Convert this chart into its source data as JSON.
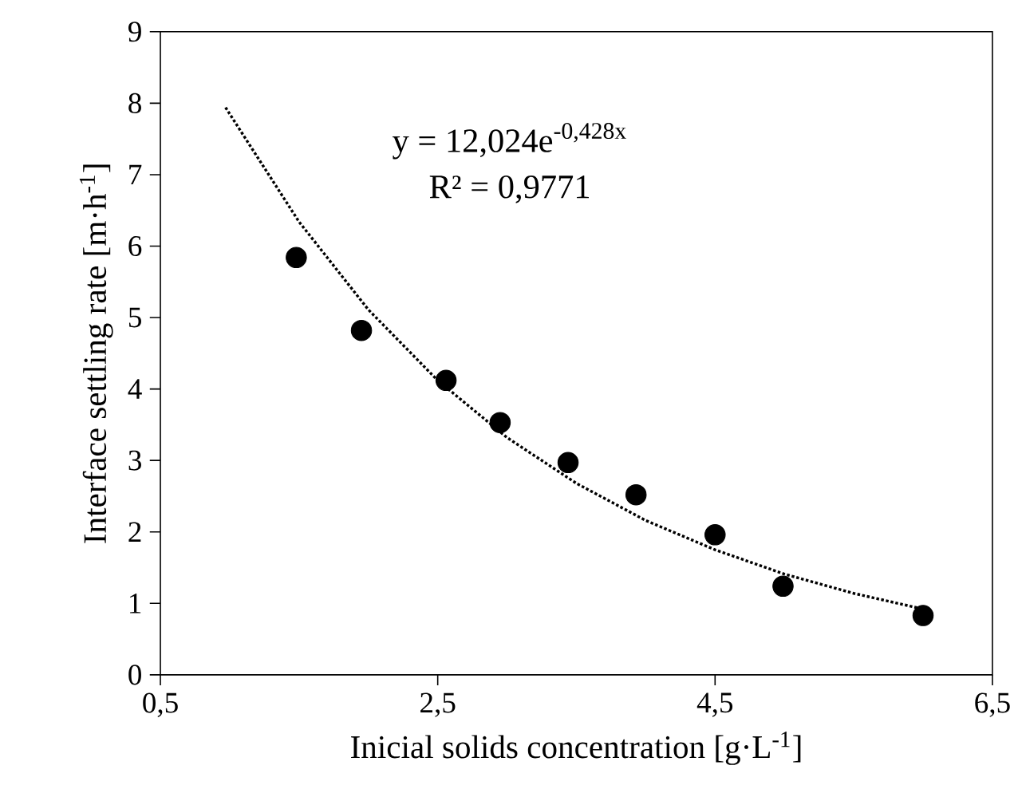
{
  "chart_data": {
    "type": "scatter",
    "xlabel": "Inicial solids concentration [g·L$^{-1}$]",
    "ylabel": "Interface settling rate [m·h$^{-1}$]",
    "annotations": [
      "y = 12,024e$^{-0,428x}$",
      "R² = 0,9771"
    ],
    "xlim": [
      0.5,
      6.5
    ],
    "xticks": [
      {
        "value": 0.5,
        "label": "0,5"
      },
      {
        "value": 2.5,
        "label": "2,5"
      },
      {
        "value": 4.5,
        "label": "4,5"
      },
      {
        "value": 6.5,
        "label": "6,5"
      }
    ],
    "ylim": [
      0,
      9
    ],
    "yticks": [
      0,
      1,
      2,
      3,
      4,
      5,
      6,
      7,
      8,
      9
    ],
    "series": [
      {
        "marker": "circle",
        "color": "#000000",
        "x": [
          1.48,
          1.95,
          2.56,
          2.95,
          3.44,
          3.93,
          4.5,
          4.99,
          6.0
        ],
        "values": [
          5.84,
          4.82,
          4.12,
          3.53,
          2.97,
          2.52,
          1.96,
          1.24,
          0.83
        ]
      },
      {
        "type": "line",
        "marker": "none",
        "line_style": "dotted",
        "color": "#000000",
        "x": [
          0.97,
          1.5,
          2.0,
          2.5,
          3.0,
          3.5,
          4.0,
          4.5,
          5.0,
          5.5,
          6.0
        ],
        "values": [
          7.94,
          6.34,
          5.11,
          4.12,
          3.32,
          2.68,
          2.16,
          1.75,
          1.41,
          1.14,
          0.92
        ]
      }
    ]
  }
}
